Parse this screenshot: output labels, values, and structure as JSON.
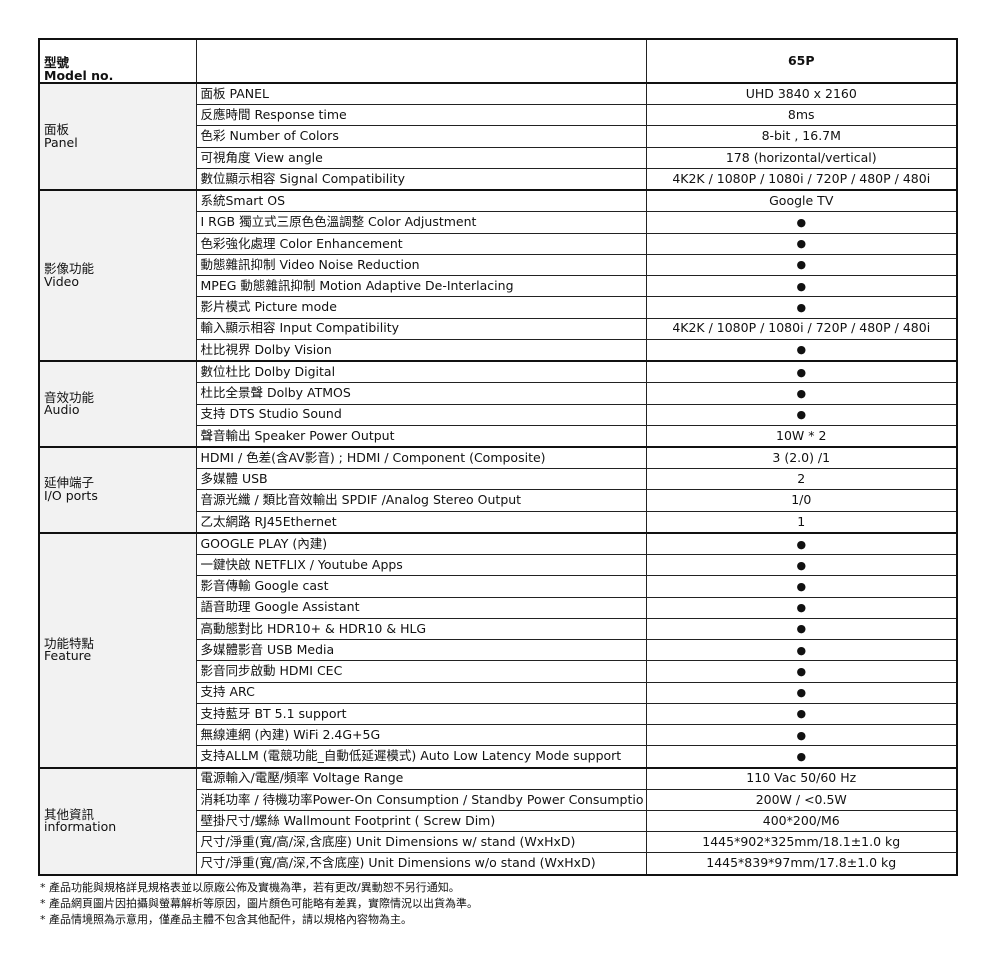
{
  "header": {
    "label_zh": "型號",
    "label_en": "Model no.",
    "model": "65P"
  },
  "sections": [
    {
      "label_zh": "面板",
      "label_en": "Panel",
      "rows": [
        {
          "label": "面板 PANEL",
          "value": "UHD 3840 x 2160"
        },
        {
          "label": "反應時間  Response time",
          "value": "8ms"
        },
        {
          "label": "色彩 Number of Colors",
          "value": "8-bit , 16.7M"
        },
        {
          "label": "可視角度 View angle",
          "value": "178 (horizontal/vertical)"
        },
        {
          "label": "數位顯示相容 Signal Compatibility",
          "value": "4K2K / 1080P / 1080i / 720P / 480P / 480i"
        }
      ]
    },
    {
      "label_zh": "影像功能",
      "label_en": "Video",
      "rows": [
        {
          "label": "系統Smart OS",
          "value": "Google TV"
        },
        {
          "label": "I RGB 獨立式三原色色溫調整 Color Adjustment",
          "value": "●"
        },
        {
          "label": "色彩強化處理 Color Enhancement",
          "value": "●"
        },
        {
          "label": "動態雜訊抑制 Video Noise Reduction",
          "value": "●"
        },
        {
          "label": "MPEG 動態雜訊抑制 Motion Adaptive De-Interlacing",
          "value": "●"
        },
        {
          "label": "影片模式 Picture mode",
          "value": "●"
        },
        {
          "label": "輸入顯示相容 Input Compatibility",
          "value": "4K2K / 1080P / 1080i / 720P / 480P / 480i"
        },
        {
          "label": "杜比視界 Dolby Vision",
          "value": "●"
        }
      ]
    },
    {
      "label_zh": "音效功能",
      "label_en": "Audio",
      "rows": [
        {
          "label": "數位杜比 Dolby Digital",
          "value": "●"
        },
        {
          "label": "杜比全景聲 Dolby ATMOS",
          "value": "●"
        },
        {
          "label": "支持 DTS Studio Sound",
          "value": "●"
        },
        {
          "label": "聲音輸出 Speaker Power Output",
          "value": "10W * 2"
        }
      ]
    },
    {
      "label_zh": "延伸端子",
      "label_en": "I/O ports",
      "rows": [
        {
          "label": "HDMI   / 色差(含AV影音) ; HDMI  / Component (Composite)",
          "value": "3 (2.0) /1"
        },
        {
          "label": "多媒體 USB",
          "value": "2"
        },
        {
          "label": "音源光纖  / 類比音效輸出 SPDIF /Analog Stereo Output",
          "value": "1/0"
        },
        {
          "label": "乙太網路 RJ45Ethernet",
          "value": "1"
        }
      ]
    },
    {
      "label_zh": "功能特點",
      "label_en": "Feature",
      "rows": [
        {
          "label": "GOOGLE PLAY (內建)",
          "value": "●"
        },
        {
          "label": "一鍵快啟 NETFLIX / Youtube Apps",
          "value": "●"
        },
        {
          "label": "影音傳輸 Google cast",
          "value": "●"
        },
        {
          "label": "語音助理 Google Assistant",
          "value": "●"
        },
        {
          "label": "高動態對比 HDR10+ & HDR10 & HLG",
          "value": "●"
        },
        {
          "label": "多媒體影音 USB Media",
          "value": "●"
        },
        {
          "label": "影音同步啟動 HDMI CEC",
          "value": "●"
        },
        {
          "label": "支持 ARC",
          "value": "●"
        },
        {
          "label": "支持藍牙 BT 5.1 support",
          "value": "●"
        },
        {
          "label": "無線連網 (內建) WiFi  2.4G+5G",
          "value": "●"
        },
        {
          "label": "支持ALLM (電競功能_自動低延遲模式) Auto Low Latency Mode support",
          "value": "●"
        }
      ]
    },
    {
      "label_zh": "其他資訊",
      "label_en": "information",
      "rows": [
        {
          "label": "電源輸入/電壓/頻率 Voltage Range",
          "value": "110 Vac  50/60 Hz"
        },
        {
          "label": "消耗功率 / 待機功率Power-On Consumption / Standby Power Consumptio",
          "value": "200W / <0.5W"
        },
        {
          "label": "壁掛尺寸/螺絲 Wallmount Footprint ( Screw Dim)",
          "value": "400*200/M6"
        },
        {
          "label": "尺寸/淨重(寬/高/深,含底座) Unit Dimensions w/ stand (WxHxD)",
          "value": "1445*902*325mm/18.1±1.0 kg"
        },
        {
          "label": "尺寸/淨重(寬/高/深,不含底座) Unit Dimensions w/o stand (WxHxD)",
          "value": "1445*839*97mm/17.8±1.0 kg"
        }
      ]
    }
  ],
  "notes": [
    "* 產品功能與規格詳見規格表並以原廠公佈及實機為準，若有更改/異動恕不另行通知。",
    "* 產品網頁圖片因拍攝與螢幕解析等原因，圖片顏色可能略有差異，實際情況以出貨為準。",
    "* 產品情境照為示意用，僅產品主體不包含其他配件，請以規格內容物為主。"
  ]
}
